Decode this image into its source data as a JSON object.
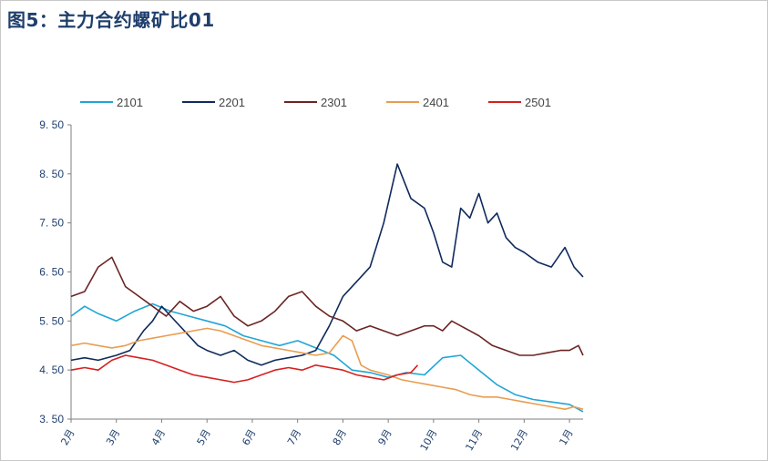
{
  "title": "图5：主力合约螺矿比01",
  "chart_data": {
    "type": "line",
    "title": "图5：主力合约螺矿比01",
    "xlabel": "",
    "ylabel": "",
    "ylim": [
      3.5,
      9.5
    ],
    "yticks": [
      "3. 50",
      "4. 50",
      "5. 50",
      "6. 50",
      "7. 50",
      "8. 50",
      "9. 50"
    ],
    "ytick_values": [
      3.5,
      4.5,
      5.5,
      6.5,
      7.5,
      8.5,
      9.5
    ],
    "xticks": [
      "2月",
      "3月",
      "4月",
      "5月",
      "6月",
      "7月",
      "8月",
      "9月",
      "10月",
      "11月",
      "12月",
      "1月"
    ],
    "xlim": [
      0,
      11.3
    ],
    "grid": false,
    "legend_position": "top",
    "series": [
      {
        "name": "2101",
        "color": "#21a5d6",
        "x": [
          0,
          0.3,
          0.6,
          1.0,
          1.4,
          1.8,
          2.2,
          2.6,
          3.0,
          3.4,
          3.8,
          4.2,
          4.6,
          5.0,
          5.4,
          5.8,
          6.2,
          6.6,
          7.0,
          7.4,
          7.8,
          8.2,
          8.6,
          9.0,
          9.4,
          9.8,
          10.2,
          10.6,
          11.0,
          11.3
        ],
        "y": [
          5.6,
          5.8,
          5.65,
          5.5,
          5.7,
          5.85,
          5.7,
          5.6,
          5.5,
          5.4,
          5.2,
          5.1,
          5.0,
          5.1,
          4.95,
          4.8,
          4.5,
          4.45,
          4.35,
          4.45,
          4.4,
          4.75,
          4.8,
          4.5,
          4.2,
          4.0,
          3.9,
          3.85,
          3.8,
          3.65
        ]
      },
      {
        "name": "2201",
        "color": "#0f2a5c",
        "x": [
          0,
          0.3,
          0.6,
          1.0,
          1.3,
          1.6,
          1.8,
          2.0,
          2.2,
          2.5,
          2.8,
          3.0,
          3.3,
          3.6,
          3.9,
          4.2,
          4.5,
          4.8,
          5.1,
          5.4,
          5.7,
          6.0,
          6.3,
          6.6,
          6.9,
          7.2,
          7.5,
          7.8,
          8.0,
          8.2,
          8.4,
          8.6,
          8.8,
          9.0,
          9.2,
          9.4,
          9.6,
          9.8,
          10.0,
          10.3,
          10.6,
          10.9,
          11.1,
          11.3
        ],
        "y": [
          4.7,
          4.75,
          4.7,
          4.8,
          4.9,
          5.3,
          5.5,
          5.8,
          5.6,
          5.3,
          5.0,
          4.9,
          4.8,
          4.9,
          4.7,
          4.6,
          4.7,
          4.75,
          4.8,
          4.9,
          5.4,
          6.0,
          6.3,
          6.6,
          7.5,
          8.7,
          8.0,
          7.8,
          7.3,
          6.7,
          6.6,
          7.8,
          7.6,
          8.1,
          7.5,
          7.7,
          7.2,
          7.0,
          6.9,
          6.7,
          6.6,
          7.0,
          6.6,
          6.4
        ]
      },
      {
        "name": "2301",
        "color": "#6b2424",
        "x": [
          0,
          0.3,
          0.6,
          0.9,
          1.2,
          1.5,
          1.8,
          2.1,
          2.4,
          2.7,
          3.0,
          3.3,
          3.6,
          3.9,
          4.2,
          4.5,
          4.8,
          5.1,
          5.4,
          5.7,
          6.0,
          6.3,
          6.6,
          6.9,
          7.2,
          7.5,
          7.8,
          8.0,
          8.2,
          8.4,
          8.6,
          8.8,
          9.0,
          9.3,
          9.6,
          9.9,
          10.2,
          10.5,
          10.8,
          11.0,
          11.2,
          11.3
        ],
        "y": [
          6.0,
          6.1,
          6.6,
          6.8,
          6.2,
          6.0,
          5.8,
          5.6,
          5.9,
          5.7,
          5.8,
          6.0,
          5.6,
          5.4,
          5.5,
          5.7,
          6.0,
          6.1,
          5.8,
          5.6,
          5.5,
          5.3,
          5.4,
          5.3,
          5.2,
          5.3,
          5.4,
          5.4,
          5.3,
          5.5,
          5.4,
          5.3,
          5.2,
          5.0,
          4.9,
          4.8,
          4.8,
          4.85,
          4.9,
          4.9,
          5.0,
          4.8
        ]
      },
      {
        "name": "2401",
        "color": "#e89d50",
        "x": [
          0,
          0.3,
          0.6,
          0.9,
          1.2,
          1.5,
          1.8,
          2.1,
          2.4,
          2.7,
          3.0,
          3.3,
          3.6,
          3.9,
          4.2,
          4.5,
          4.8,
          5.1,
          5.4,
          5.7,
          6.0,
          6.2,
          6.4,
          6.6,
          6.8,
          7.0,
          7.3,
          7.6,
          7.9,
          8.2,
          8.5,
          8.8,
          9.1,
          9.4,
          9.7,
          10.0,
          10.3,
          10.6,
          10.9,
          11.1,
          11.3
        ],
        "y": [
          5.0,
          5.05,
          5.0,
          4.95,
          5.0,
          5.1,
          5.15,
          5.2,
          5.25,
          5.3,
          5.35,
          5.3,
          5.2,
          5.1,
          5.0,
          4.95,
          4.9,
          4.85,
          4.8,
          4.85,
          5.2,
          5.1,
          4.6,
          4.5,
          4.45,
          4.4,
          4.3,
          4.25,
          4.2,
          4.15,
          4.1,
          4.0,
          3.95,
          3.95,
          3.9,
          3.85,
          3.8,
          3.75,
          3.7,
          3.75,
          3.7
        ]
      },
      {
        "name": "2501",
        "color": "#d62020",
        "x": [
          0,
          0.3,
          0.6,
          0.9,
          1.2,
          1.5,
          1.8,
          2.1,
          2.4,
          2.7,
          3.0,
          3.3,
          3.6,
          3.9,
          4.2,
          4.5,
          4.8,
          5.1,
          5.4,
          5.7,
          6.0,
          6.3,
          6.6,
          6.9,
          7.2,
          7.5,
          7.65
        ],
        "y": [
          4.5,
          4.55,
          4.5,
          4.7,
          4.8,
          4.75,
          4.7,
          4.6,
          4.5,
          4.4,
          4.35,
          4.3,
          4.25,
          4.3,
          4.4,
          4.5,
          4.55,
          4.5,
          4.6,
          4.55,
          4.5,
          4.4,
          4.35,
          4.3,
          4.4,
          4.45,
          4.6
        ]
      }
    ]
  }
}
